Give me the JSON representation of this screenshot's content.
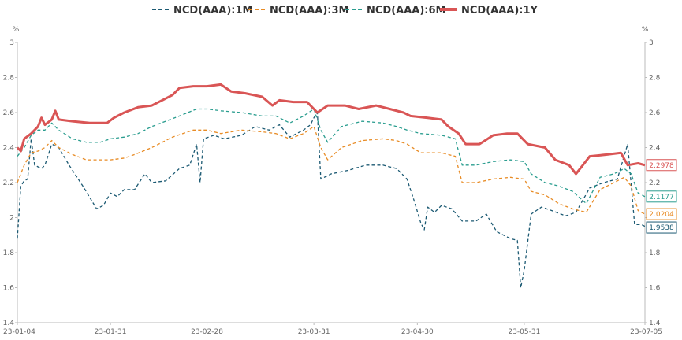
{
  "chart_data": {
    "type": "line",
    "y_unit": "%",
    "ylim": [
      1.4,
      3
    ],
    "y_ticks": [
      "1.4",
      "1.6",
      "1.8",
      "2",
      "2.2",
      "2.4",
      "2.6",
      "2.8",
      "3"
    ],
    "x_range": [
      "2023-01-04",
      "2023-07-05"
    ],
    "x_ticks": [
      "23-01-04",
      "23-01-31",
      "23-02-28",
      "23-03-31",
      "23-04-30",
      "23-05-31",
      "23-07-05"
    ],
    "x_tick_dates": [
      "2023-01-04",
      "2023-01-31",
      "2023-02-28",
      "2023-03-31",
      "2023-04-30",
      "2023-05-31",
      "2023-07-05"
    ],
    "grid": false,
    "legend_position": "top-center",
    "series": [
      {
        "name": "NCD(AAA):1M",
        "color": "#1c5a73",
        "dash": "dashed",
        "end_label": "1.9538",
        "points": [
          [
            "2023-01-04",
            1.88
          ],
          [
            "2023-01-05",
            2.18
          ],
          [
            "2023-01-06",
            2.21
          ],
          [
            "2023-01-07",
            2.22
          ],
          [
            "2023-01-08",
            2.45
          ],
          [
            "2023-01-09",
            2.3
          ],
          [
            "2023-01-11",
            2.28
          ],
          [
            "2023-01-12",
            2.3
          ],
          [
            "2023-01-14",
            2.42
          ],
          [
            "2023-01-16",
            2.4
          ],
          [
            "2023-01-19",
            2.3
          ],
          [
            "2023-01-23",
            2.18
          ],
          [
            "2023-01-27",
            2.05
          ],
          [
            "2023-01-29",
            2.07
          ],
          [
            "2023-01-31",
            2.14
          ],
          [
            "2023-02-02",
            2.12
          ],
          [
            "2023-02-04",
            2.16
          ],
          [
            "2023-02-07",
            2.16
          ],
          [
            "2023-02-10",
            2.25
          ],
          [
            "2023-02-12",
            2.2
          ],
          [
            "2023-02-16",
            2.21
          ],
          [
            "2023-02-20",
            2.28
          ],
          [
            "2023-02-23",
            2.3
          ],
          [
            "2023-02-25",
            2.42
          ],
          [
            "2023-02-26",
            2.2
          ],
          [
            "2023-02-27",
            2.45
          ],
          [
            "2023-03-02",
            2.47
          ],
          [
            "2023-03-05",
            2.45
          ],
          [
            "2023-03-10",
            2.47
          ],
          [
            "2023-03-14",
            2.52
          ],
          [
            "2023-03-18",
            2.5
          ],
          [
            "2023-03-21",
            2.53
          ],
          [
            "2023-03-24",
            2.46
          ],
          [
            "2023-03-28",
            2.5
          ],
          [
            "2023-03-30",
            2.53
          ],
          [
            "2023-03-31",
            2.57
          ],
          [
            "2023-04-01",
            2.6
          ],
          [
            "2023-04-02",
            2.22
          ],
          [
            "2023-04-05",
            2.25
          ],
          [
            "2023-04-10",
            2.27
          ],
          [
            "2023-04-15",
            2.3
          ],
          [
            "2023-04-20",
            2.3
          ],
          [
            "2023-04-24",
            2.28
          ],
          [
            "2023-04-27",
            2.22
          ],
          [
            "2023-04-29",
            2.1
          ],
          [
            "2023-05-01",
            1.97
          ],
          [
            "2023-05-02",
            1.93
          ],
          [
            "2023-05-03",
            2.06
          ],
          [
            "2023-05-05",
            2.03
          ],
          [
            "2023-05-07",
            2.07
          ],
          [
            "2023-05-10",
            2.05
          ],
          [
            "2023-05-13",
            1.98
          ],
          [
            "2023-05-17",
            1.98
          ],
          [
            "2023-05-20",
            2.02
          ],
          [
            "2023-05-23",
            1.92
          ],
          [
            "2023-05-27",
            1.88
          ],
          [
            "2023-05-29",
            1.87
          ],
          [
            "2023-05-30",
            1.6
          ],
          [
            "2023-05-31",
            1.7
          ],
          [
            "2023-06-02",
            2.02
          ],
          [
            "2023-06-05",
            2.06
          ],
          [
            "2023-06-08",
            2.04
          ],
          [
            "2023-06-12",
            2.01
          ],
          [
            "2023-06-15",
            2.03
          ],
          [
            "2023-06-19",
            2.17
          ],
          [
            "2023-06-23",
            2.2
          ],
          [
            "2023-06-27",
            2.22
          ],
          [
            "2023-06-30",
            2.42
          ],
          [
            "2023-07-02",
            1.96
          ],
          [
            "2023-07-04",
            1.96
          ],
          [
            "2023-07-05",
            1.95
          ]
        ]
      },
      {
        "name": "NCD(AAA):3M",
        "color": "#e88c26",
        "dash": "dashed",
        "end_label": "2.0204",
        "points": [
          [
            "2023-01-04",
            2.2
          ],
          [
            "2023-01-06",
            2.3
          ],
          [
            "2023-01-08",
            2.37
          ],
          [
            "2023-01-10",
            2.38
          ],
          [
            "2023-01-12",
            2.4
          ],
          [
            "2023-01-14",
            2.44
          ],
          [
            "2023-01-16",
            2.4
          ],
          [
            "2023-01-20",
            2.36
          ],
          [
            "2023-01-24",
            2.33
          ],
          [
            "2023-01-28",
            2.33
          ],
          [
            "2023-01-31",
            2.33
          ],
          [
            "2023-02-04",
            2.34
          ],
          [
            "2023-02-07",
            2.36
          ],
          [
            "2023-02-12",
            2.4
          ],
          [
            "2023-02-18",
            2.46
          ],
          [
            "2023-02-24",
            2.5
          ],
          [
            "2023-02-28",
            2.5
          ],
          [
            "2023-03-04",
            2.48
          ],
          [
            "2023-03-10",
            2.5
          ],
          [
            "2023-03-16",
            2.49
          ],
          [
            "2023-03-20",
            2.48
          ],
          [
            "2023-03-24",
            2.45
          ],
          [
            "2023-03-28",
            2.48
          ],
          [
            "2023-03-31",
            2.52
          ],
          [
            "2023-04-02",
            2.4
          ],
          [
            "2023-04-04",
            2.33
          ],
          [
            "2023-04-08",
            2.4
          ],
          [
            "2023-04-14",
            2.44
          ],
          [
            "2023-04-20",
            2.45
          ],
          [
            "2023-04-24",
            2.44
          ],
          [
            "2023-04-27",
            2.42
          ],
          [
            "2023-05-01",
            2.37
          ],
          [
            "2023-05-07",
            2.37
          ],
          [
            "2023-05-11",
            2.35
          ],
          [
            "2023-05-13",
            2.2
          ],
          [
            "2023-05-17",
            2.2
          ],
          [
            "2023-05-22",
            2.22
          ],
          [
            "2023-05-27",
            2.23
          ],
          [
            "2023-05-31",
            2.22
          ],
          [
            "2023-06-02",
            2.15
          ],
          [
            "2023-06-06",
            2.13
          ],
          [
            "2023-06-10",
            2.08
          ],
          [
            "2023-06-14",
            2.05
          ],
          [
            "2023-06-18",
            2.03
          ],
          [
            "2023-06-22",
            2.16
          ],
          [
            "2023-06-26",
            2.2
          ],
          [
            "2023-06-29",
            2.23
          ],
          [
            "2023-07-01",
            2.18
          ],
          [
            "2023-07-03",
            2.04
          ],
          [
            "2023-07-05",
            2.02
          ]
        ]
      },
      {
        "name": "NCD(AAA):6M",
        "color": "#2a9d8f",
        "dash": "dashed",
        "end_label": "2.1177",
        "points": [
          [
            "2023-01-04",
            2.35
          ],
          [
            "2023-01-06",
            2.4
          ],
          [
            "2023-01-08",
            2.47
          ],
          [
            "2023-01-10",
            2.5
          ],
          [
            "2023-01-12",
            2.5
          ],
          [
            "2023-01-14",
            2.54
          ],
          [
            "2023-01-16",
            2.5
          ],
          [
            "2023-01-20",
            2.45
          ],
          [
            "2023-01-24",
            2.43
          ],
          [
            "2023-01-28",
            2.43
          ],
          [
            "2023-01-31",
            2.45
          ],
          [
            "2023-02-04",
            2.46
          ],
          [
            "2023-02-08",
            2.48
          ],
          [
            "2023-02-12",
            2.52
          ],
          [
            "2023-02-16",
            2.55
          ],
          [
            "2023-02-20",
            2.58
          ],
          [
            "2023-02-25",
            2.62
          ],
          [
            "2023-02-28",
            2.62
          ],
          [
            "2023-03-04",
            2.61
          ],
          [
            "2023-03-10",
            2.6
          ],
          [
            "2023-03-16",
            2.58
          ],
          [
            "2023-03-20",
            2.58
          ],
          [
            "2023-03-24",
            2.54
          ],
          [
            "2023-03-28",
            2.58
          ],
          [
            "2023-03-31",
            2.62
          ],
          [
            "2023-04-02",
            2.5
          ],
          [
            "2023-04-04",
            2.43
          ],
          [
            "2023-04-08",
            2.52
          ],
          [
            "2023-04-14",
            2.55
          ],
          [
            "2023-04-20",
            2.54
          ],
          [
            "2023-04-24",
            2.52
          ],
          [
            "2023-04-27",
            2.5
          ],
          [
            "2023-05-01",
            2.48
          ],
          [
            "2023-05-07",
            2.47
          ],
          [
            "2023-05-11",
            2.45
          ],
          [
            "2023-05-13",
            2.3
          ],
          [
            "2023-05-17",
            2.3
          ],
          [
            "2023-05-22",
            2.32
          ],
          [
            "2023-05-27",
            2.33
          ],
          [
            "2023-05-31",
            2.32
          ],
          [
            "2023-06-02",
            2.25
          ],
          [
            "2023-06-06",
            2.2
          ],
          [
            "2023-06-10",
            2.18
          ],
          [
            "2023-06-14",
            2.15
          ],
          [
            "2023-06-18",
            2.08
          ],
          [
            "2023-06-22",
            2.23
          ],
          [
            "2023-06-26",
            2.25
          ],
          [
            "2023-06-29",
            2.28
          ],
          [
            "2023-07-01",
            2.25
          ],
          [
            "2023-07-03",
            2.14
          ],
          [
            "2023-07-05",
            2.12
          ]
        ]
      },
      {
        "name": "NCD(AAA):1Y",
        "color": "#d95555",
        "dash": "solid",
        "end_label": "2.2978",
        "points": [
          [
            "2023-01-04",
            2.4
          ],
          [
            "2023-01-05",
            2.38
          ],
          [
            "2023-01-06",
            2.45
          ],
          [
            "2023-01-08",
            2.48
          ],
          [
            "2023-01-10",
            2.52
          ],
          [
            "2023-01-11",
            2.57
          ],
          [
            "2023-01-12",
            2.53
          ],
          [
            "2023-01-14",
            2.56
          ],
          [
            "2023-01-15",
            2.61
          ],
          [
            "2023-01-16",
            2.56
          ],
          [
            "2023-01-20",
            2.55
          ],
          [
            "2023-01-25",
            2.54
          ],
          [
            "2023-01-30",
            2.54
          ],
          [
            "2023-02-01",
            2.57
          ],
          [
            "2023-02-04",
            2.6
          ],
          [
            "2023-02-08",
            2.63
          ],
          [
            "2023-02-12",
            2.64
          ],
          [
            "2023-02-16",
            2.68
          ],
          [
            "2023-02-18",
            2.7
          ],
          [
            "2023-02-20",
            2.74
          ],
          [
            "2023-02-24",
            2.75
          ],
          [
            "2023-02-28",
            2.75
          ],
          [
            "2023-03-04",
            2.76
          ],
          [
            "2023-03-07",
            2.72
          ],
          [
            "2023-03-11",
            2.71
          ],
          [
            "2023-03-16",
            2.69
          ],
          [
            "2023-03-19",
            2.64
          ],
          [
            "2023-03-21",
            2.67
          ],
          [
            "2023-03-25",
            2.66
          ],
          [
            "2023-03-29",
            2.66
          ],
          [
            "2023-04-01",
            2.6
          ],
          [
            "2023-04-04",
            2.64
          ],
          [
            "2023-04-09",
            2.64
          ],
          [
            "2023-04-13",
            2.62
          ],
          [
            "2023-04-18",
            2.64
          ],
          [
            "2023-04-22",
            2.62
          ],
          [
            "2023-04-26",
            2.6
          ],
          [
            "2023-04-28",
            2.58
          ],
          [
            "2023-05-03",
            2.57
          ],
          [
            "2023-05-07",
            2.56
          ],
          [
            "2023-05-09",
            2.52
          ],
          [
            "2023-05-12",
            2.48
          ],
          [
            "2023-05-14",
            2.42
          ],
          [
            "2023-05-18",
            2.42
          ],
          [
            "2023-05-22",
            2.47
          ],
          [
            "2023-05-26",
            2.48
          ],
          [
            "2023-05-29",
            2.48
          ],
          [
            "2023-06-01",
            2.42
          ],
          [
            "2023-06-06",
            2.4
          ],
          [
            "2023-06-09",
            2.33
          ],
          [
            "2023-06-13",
            2.3
          ],
          [
            "2023-06-15",
            2.25
          ],
          [
            "2023-06-17",
            2.3
          ],
          [
            "2023-06-19",
            2.35
          ],
          [
            "2023-06-24",
            2.36
          ],
          [
            "2023-06-28",
            2.37
          ],
          [
            "2023-06-30",
            2.3
          ],
          [
            "2023-07-03",
            2.31
          ],
          [
            "2023-07-05",
            2.3
          ]
        ]
      }
    ]
  }
}
